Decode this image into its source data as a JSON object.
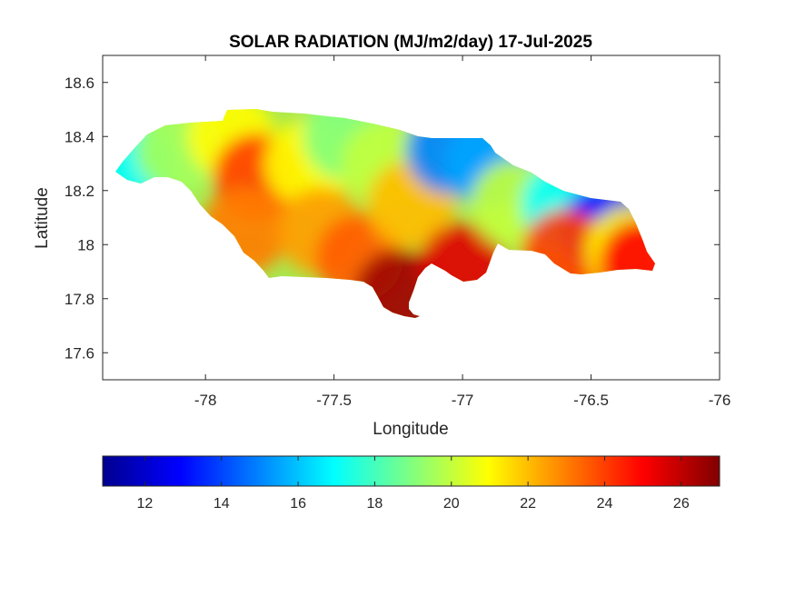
{
  "chart_data": {
    "type": "heatmap",
    "title": "SOLAR RADIATION (MJ/m2/day) 17-Jul-2025",
    "xlabel": "Longitude",
    "ylabel": "Latitude",
    "xlim": [
      -78.4,
      -76
    ],
    "ylim": [
      17.5,
      18.7
    ],
    "x_ticks": [
      -78,
      -77.5,
      -77,
      -76.5,
      -76
    ],
    "x_tick_labels": [
      "-78",
      "-77.5",
      "-77",
      "-76.5",
      "-76"
    ],
    "y_ticks": [
      17.6,
      17.8,
      18,
      18.2,
      18.4,
      18.6
    ],
    "y_tick_labels": [
      "17.6",
      "17.8",
      "18",
      "18.2",
      "18.4",
      "18.6"
    ],
    "grid": false,
    "colormap": "jet",
    "colorbar": {
      "placement": "bottom",
      "clim": [
        10.9,
        27
      ],
      "ticks": [
        12,
        14,
        16,
        18,
        20,
        22,
        24,
        26
      ],
      "tick_labels": [
        "12",
        "14",
        "16",
        "18",
        "20",
        "22",
        "24",
        "26"
      ]
    },
    "value_range": [
      11,
      27
    ],
    "regions": [
      {
        "lon": -78.3,
        "lat": 18.3,
        "value": 17
      },
      {
        "lon": -78.1,
        "lat": 18.35,
        "value": 19.5
      },
      {
        "lon": -77.9,
        "lat": 18.4,
        "value": 21
      },
      {
        "lon": -77.8,
        "lat": 18.25,
        "value": 24
      },
      {
        "lon": -77.85,
        "lat": 18.05,
        "value": 23
      },
      {
        "lon": -77.6,
        "lat": 18.3,
        "value": 21
      },
      {
        "lon": -77.45,
        "lat": 18.4,
        "value": 19
      },
      {
        "lon": -77.3,
        "lat": 18.3,
        "value": 20
      },
      {
        "lon": -77.55,
        "lat": 18.05,
        "value": 22.5
      },
      {
        "lon": -77.4,
        "lat": 17.95,
        "value": 23.5
      },
      {
        "lon": -77.25,
        "lat": 17.82,
        "value": 26.5
      },
      {
        "lon": -77.2,
        "lat": 18.15,
        "value": 22
      },
      {
        "lon": -77.05,
        "lat": 18.35,
        "value": 15
      },
      {
        "lon": -76.9,
        "lat": 18.3,
        "value": 15.5
      },
      {
        "lon": -77.0,
        "lat": 17.92,
        "value": 25.5
      },
      {
        "lon": -76.8,
        "lat": 18.15,
        "value": 20
      },
      {
        "lon": -76.6,
        "lat": 18.15,
        "value": 17
      },
      {
        "lon": -76.45,
        "lat": 18.06,
        "value": 13
      },
      {
        "lon": -76.6,
        "lat": 17.97,
        "value": 24
      },
      {
        "lon": -76.35,
        "lat": 17.98,
        "value": 21
      },
      {
        "lon": -76.3,
        "lat": 17.93,
        "value": 25
      }
    ]
  }
}
